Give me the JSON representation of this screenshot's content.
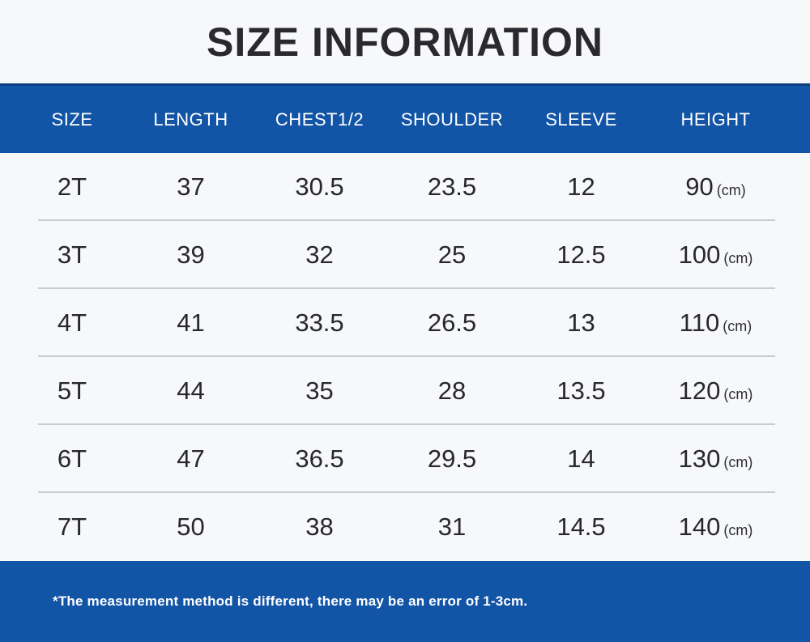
{
  "chart_data": {
    "type": "table",
    "title": "SIZE INFORMATION",
    "columns": [
      "SIZE",
      "LENGTH",
      "CHEST1/2",
      "SHOULDER",
      "SLEEVE",
      "HEIGHT"
    ],
    "unit_label": "(cm)",
    "rows": [
      [
        "2T",
        "37",
        "30.5",
        "23.5",
        "12",
        "90"
      ],
      [
        "3T",
        "39",
        "32",
        "25",
        "12.5",
        "100"
      ],
      [
        "4T",
        "41",
        "33.5",
        "26.5",
        "13",
        "110"
      ],
      [
        "5T",
        "44",
        "35",
        "28",
        "13.5",
        "120"
      ],
      [
        "6T",
        "47",
        "36.5",
        "29.5",
        "14",
        "130"
      ],
      [
        "7T",
        "50",
        "38",
        "31",
        "14.5",
        "140"
      ]
    ],
    "footnote": "*The measurement method is different, there may be an error of 1-3cm."
  },
  "colors": {
    "accent": "#1254a6",
    "accent-dark": "#0d4080",
    "divider": "#c9cacd",
    "bg": "#f7f8fa",
    "text": "#27272c",
    "header-text": "#ffffff"
  }
}
